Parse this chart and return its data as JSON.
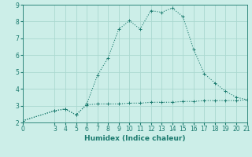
{
  "xlabel": "Humidex (Indice chaleur)",
  "ylabel": "",
  "bg_color": "#cceee8",
  "grid_color": "#aad8d0",
  "line_color": "#1a7a6e",
  "line1_x": [
    0,
    3,
    4,
    5,
    6,
    7,
    8,
    9,
    10,
    11,
    12,
    13,
    14,
    15,
    16,
    17,
    18,
    19,
    20,
    21
  ],
  "line1_y": [
    2.1,
    2.7,
    2.8,
    2.45,
    3.1,
    4.8,
    5.85,
    7.55,
    8.05,
    7.55,
    8.65,
    8.55,
    8.8,
    8.3,
    6.35,
    4.9,
    4.35,
    3.85,
    3.5,
    3.35
  ],
  "line2_x": [
    0,
    3,
    4,
    5,
    6,
    7,
    8,
    9,
    10,
    11,
    12,
    13,
    14,
    15,
    16,
    17,
    18,
    19,
    20,
    21
  ],
  "line2_y": [
    2.1,
    2.7,
    2.8,
    2.45,
    3.05,
    3.1,
    3.1,
    3.1,
    3.15,
    3.15,
    3.2,
    3.2,
    3.2,
    3.25,
    3.25,
    3.3,
    3.3,
    3.3,
    3.3,
    3.35
  ],
  "xlim": [
    0,
    21
  ],
  "ylim": [
    2,
    9
  ],
  "xticks": [
    0,
    3,
    4,
    5,
    6,
    7,
    8,
    9,
    10,
    11,
    12,
    13,
    14,
    15,
    16,
    17,
    18,
    19,
    20,
    21
  ],
  "yticks": [
    2,
    3,
    4,
    5,
    6,
    7,
    8,
    9
  ],
  "tick_fontsize": 5.5,
  "label_fontsize": 6.5,
  "linewidth": 0.8,
  "markersize": 2.5,
  "markeredgewidth": 0.7
}
